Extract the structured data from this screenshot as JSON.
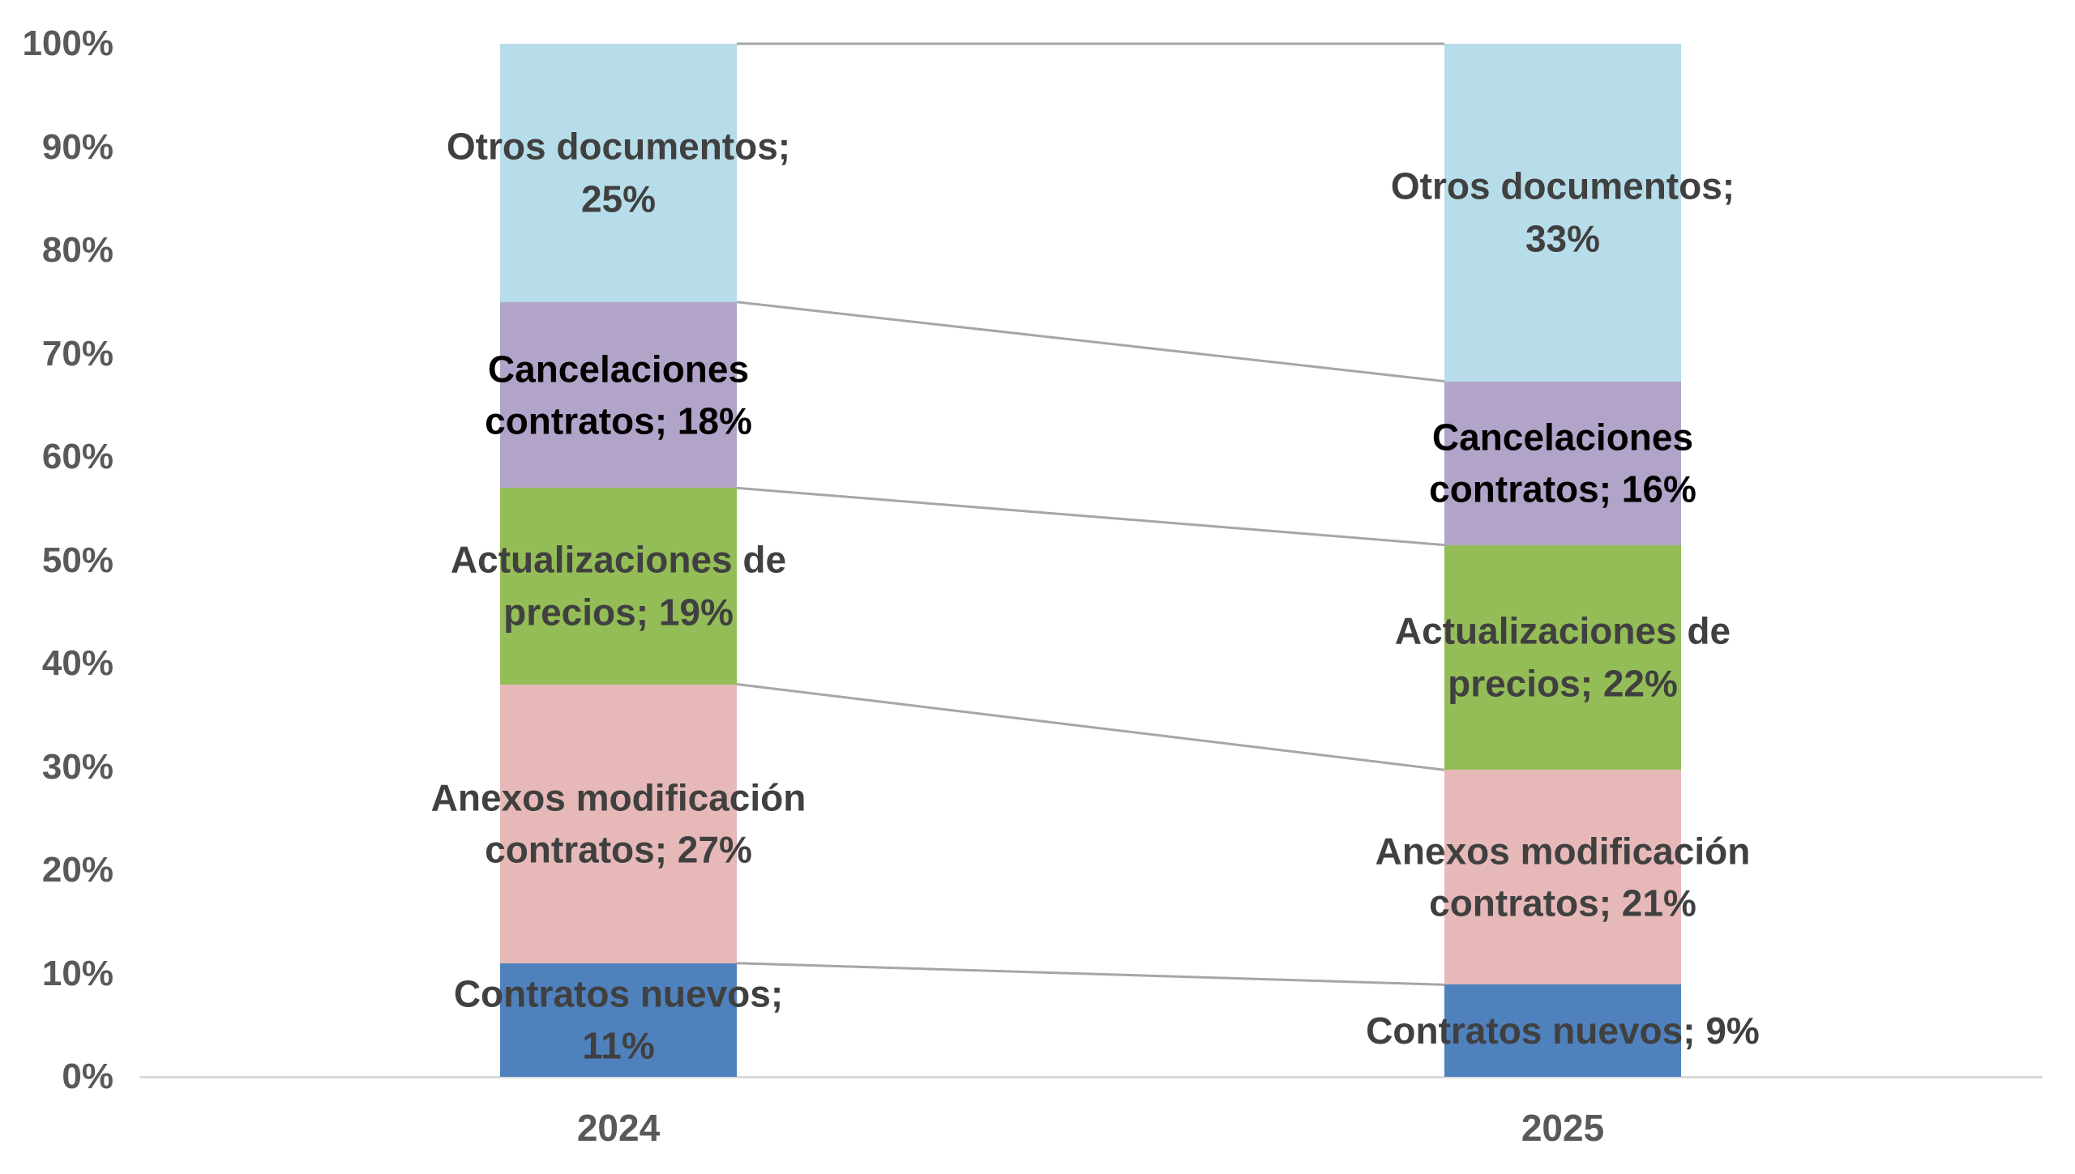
{
  "chart_data": {
    "type": "bar",
    "subtype": "100-percent-stacked-column-with-connector-lines",
    "title": "",
    "categories": [
      "2024",
      "2025"
    ],
    "series": [
      {
        "name": "Contratos nuevos",
        "color": "#4F81BD",
        "label_color": "#404040",
        "values": [
          11,
          9
        ],
        "labels": [
          [
            "Contratos nuevos;",
            "11%"
          ],
          [
            "Contratos nuevos; 9%"
          ]
        ]
      },
      {
        "name": "Anexos modificación contratos",
        "color": "#E6B9B8",
        "label_color": "#404040",
        "values": [
          27,
          21
        ],
        "labels": [
          [
            "Anexos modificación",
            "contratos; 27%"
          ],
          [
            "Anexos modificación",
            "contratos; 21%"
          ]
        ]
      },
      {
        "name": "Actualizaciones de precios",
        "color": "#94BD57",
        "label_color": "#404040",
        "values": [
          19,
          22
        ],
        "labels": [
          [
            "Actualizaciones de",
            "precios; 19%"
          ],
          [
            "Actualizaciones de",
            "precios; 22%"
          ]
        ]
      },
      {
        "name": "Cancelaciones contratos",
        "color": "#B2A4C8",
        "label_color": "#000000",
        "values": [
          18,
          16
        ],
        "labels": [
          [
            "Cancelaciones",
            "contratos; 18%"
          ],
          [
            "Cancelaciones",
            "contratos; 16%"
          ]
        ]
      },
      {
        "name": "Otros documentos",
        "color": "#B6DDE9",
        "label_color": "#404040",
        "values": [
          25,
          33
        ],
        "labels": [
          [
            "Otros documentos;",
            "25%"
          ],
          [
            "Otros documentos;",
            "33%"
          ]
        ]
      }
    ],
    "y_axis": {
      "tick_labels": [
        "0%",
        "10%",
        "20%",
        "30%",
        "40%",
        "50%",
        "60%",
        "70%",
        "80%",
        "90%",
        "100%"
      ],
      "min": 0,
      "max": 100,
      "tick_color": "#595959",
      "axis_line_color": "#D9D9D9"
    },
    "connector_color": "#A6A6A6",
    "plot_background": "#FFFFFF",
    "legend": "none",
    "gridlines": "none"
  }
}
